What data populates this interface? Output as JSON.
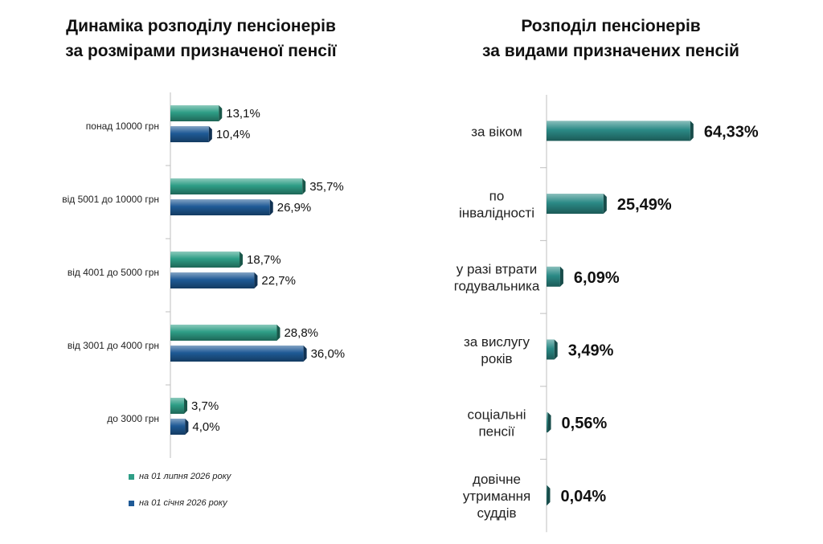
{
  "colors": {
    "series1": "#2e9e86",
    "series2": "#1f5a96",
    "axis": "#bfbfbf"
  },
  "chart_data": [
    {
      "type": "bar",
      "orientation": "horizontal",
      "title": "Динаміка розподілу пенсіонерів за розмірами призначеної пенсії",
      "title_lines": [
        "Динаміка розподілу пенсіонерів",
        "за розмірами призначеної пенсії"
      ],
      "categories": [
        "понад 10000 грн",
        "від 5001 до 10000 грн",
        "від 4001 до 5000 грн",
        "від 3001 до 4000 грн",
        "до 3000 грн"
      ],
      "series": [
        {
          "name": "на 01 липня 2026 року",
          "values": [
            13.1,
            35.7,
            18.7,
            28.8,
            3.7
          ],
          "labels": [
            "13,1%",
            "35,7%",
            "18,7%",
            "28,8%",
            "3,7%"
          ]
        },
        {
          "name": "на 01 січня 2026 року",
          "values": [
            10.4,
            26.9,
            22.7,
            36.0,
            4.0
          ],
          "labels": [
            "10,4%",
            "26,9%",
            "22,7%",
            "36,0%",
            "4,0%"
          ]
        }
      ],
      "legend_position": "bottom-left",
      "grid": false
    },
    {
      "type": "bar",
      "orientation": "horizontal",
      "title": "Розподіл пенсіонерів за видами призначених пенсій",
      "title_lines": [
        "Розподіл пенсіонерів",
        "за видами призначених пенсій"
      ],
      "categories": [
        [
          "за віком"
        ],
        [
          "по",
          "інвалідності"
        ],
        [
          "у разі втрати",
          "годувальника"
        ],
        [
          "за вислугу",
          "років"
        ],
        [
          "соціальні",
          "пенсії"
        ],
        [
          "довічне",
          "утримання",
          "суддів"
        ]
      ],
      "values": [
        64.33,
        25.49,
        6.09,
        3.49,
        0.56,
        0.04
      ],
      "labels": [
        "64,33%",
        "25,49%",
        "6,09%",
        "3,49%",
        "0,56%",
        "0,04%"
      ],
      "grid": false
    }
  ]
}
